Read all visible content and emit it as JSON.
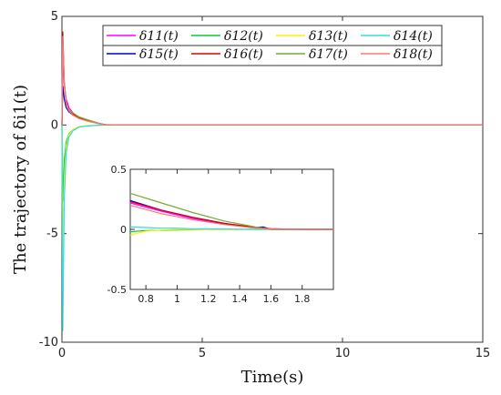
{
  "chart_data": [
    {
      "type": "line",
      "xlabel": "Time(s)",
      "ylabel": "The trajectory of δi1(t)",
      "xlim": [
        0,
        15
      ],
      "ylim": [
        -10,
        5
      ],
      "xticks": [
        0,
        5,
        10,
        15
      ],
      "yticks": [
        -10,
        -5,
        0,
        5
      ],
      "grid": false,
      "legend": {
        "placement": "top-right",
        "columns": 4
      },
      "series": [
        {
          "name": "δ11(t)",
          "color": "#ff00ff",
          "x": [
            0,
            0.03,
            0.08,
            0.15,
            0.25,
            0.4,
            0.6,
            0.9,
            1.3,
            1.6,
            2,
            15
          ],
          "y": [
            0,
            3.0,
            1.8,
            1.2,
            0.8,
            0.55,
            0.35,
            0.2,
            0.07,
            0,
            0,
            0
          ]
        },
        {
          "name": "δ12(t)",
          "color": "#00cc44",
          "x": [
            0,
            0.03,
            0.08,
            0.15,
            0.25,
            0.4,
            0.6,
            0.9,
            1.3,
            1.6,
            2,
            15
          ],
          "y": [
            0,
            -3.5,
            -1.6,
            -0.8,
            -0.4,
            -0.2,
            -0.1,
            -0.04,
            -0.01,
            0,
            0,
            0
          ]
        },
        {
          "name": "δ13(t)",
          "color": "#ffee00",
          "x": [
            0,
            0.03,
            0.08,
            0.15,
            0.25,
            0.4,
            0.6,
            0.9,
            1.3,
            1.6,
            2,
            15
          ],
          "y": [
            0,
            -6.0,
            -2.5,
            -1.0,
            -0.45,
            -0.2,
            -0.08,
            -0.03,
            -0.01,
            0,
            0,
            0
          ]
        },
        {
          "name": "δ14(t)",
          "color": "#33dddd",
          "x": [
            0,
            0.03,
            0.08,
            0.15,
            0.25,
            0.4,
            0.6,
            0.9,
            1.3,
            1.6,
            2,
            15
          ],
          "y": [
            0,
            -9.5,
            -3.5,
            -1.3,
            -0.55,
            -0.25,
            -0.1,
            -0.04,
            -0.01,
            0,
            0,
            0
          ]
        },
        {
          "name": "δ15(t)",
          "color": "#0000cc",
          "x": [
            0,
            0.03,
            0.08,
            0.15,
            0.25,
            0.4,
            0.6,
            0.9,
            1.3,
            1.6,
            2,
            15
          ],
          "y": [
            0,
            1.8,
            1.2,
            0.8,
            0.6,
            0.45,
            0.32,
            0.2,
            0.07,
            0,
            0,
            0
          ]
        },
        {
          "name": "δ16(t)",
          "color": "#dd0000",
          "x": [
            0,
            0.03,
            0.08,
            0.15,
            0.25,
            0.4,
            0.6,
            0.9,
            1.3,
            1.6,
            2,
            15
          ],
          "y": [
            0,
            4.3,
            2.0,
            1.1,
            0.7,
            0.5,
            0.35,
            0.22,
            0.08,
            0,
            0,
            0
          ]
        },
        {
          "name": "δ17(t)",
          "color": "#77aa33",
          "x": [
            0,
            0.03,
            0.08,
            0.15,
            0.25,
            0.4,
            0.6,
            0.9,
            1.3,
            1.5,
            2,
            15
          ],
          "y": [
            0,
            3.8,
            1.9,
            1.0,
            0.7,
            0.55,
            0.38,
            0.25,
            0.09,
            0.02,
            0,
            0
          ]
        },
        {
          "name": "δ18(t)",
          "color": "#ff7777",
          "x": [
            0,
            0.03,
            0.08,
            0.15,
            0.25,
            0.4,
            0.6,
            0.9,
            1.3,
            1.6,
            2,
            15
          ],
          "y": [
            0,
            4.1,
            1.9,
            1.05,
            0.65,
            0.45,
            0.3,
            0.18,
            0.06,
            0,
            0,
            0
          ]
        }
      ]
    },
    {
      "type": "line",
      "inset": true,
      "xlim": [
        0.7,
        2.0
      ],
      "ylim": [
        -0.5,
        0.5
      ],
      "xticks": [
        0.8,
        1,
        1.2,
        1.4,
        1.6,
        1.8
      ],
      "yticks": [
        -0.5,
        0,
        0.5
      ],
      "grid": false,
      "series": [
        {
          "name": "δ11(t)",
          "color": "#ff00ff",
          "x": [
            0.7,
            0.9,
            1.1,
            1.3,
            1.5,
            1.6,
            1.8,
            2.0
          ],
          "y": [
            0.22,
            0.15,
            0.09,
            0.045,
            0.015,
            0.005,
            0,
            0
          ]
        },
        {
          "name": "δ12(t)",
          "color": "#00cc44",
          "x": [
            0.7,
            0.8,
            1.0,
            1.2,
            1.4,
            1.6,
            1.8,
            2.0
          ],
          "y": [
            -0.02,
            -0.01,
            -0.005,
            0,
            0,
            0,
            0,
            0
          ]
        },
        {
          "name": "δ13(t)",
          "color": "#ffee00",
          "x": [
            0.7,
            0.75,
            0.8,
            0.9,
            1.0,
            1.2,
            1.5,
            2.0
          ],
          "y": [
            -0.05,
            -0.03,
            -0.015,
            -0.005,
            0,
            0,
            0,
            0
          ]
        },
        {
          "name": "δ14(t)",
          "color": "#33dddd",
          "x": [
            0.7,
            0.8,
            0.9,
            1.0,
            1.1,
            1.3,
            1.5,
            2.0
          ],
          "y": [
            0.02,
            0.015,
            0.01,
            0.01,
            0.005,
            0.003,
            0,
            0
          ]
        },
        {
          "name": "δ15(t)",
          "color": "#0000cc",
          "x": [
            0.7,
            0.9,
            1.1,
            1.3,
            1.5,
            1.55,
            1.6,
            2.0
          ],
          "y": [
            0.24,
            0.16,
            0.1,
            0.05,
            0.015,
            0.02,
            0,
            0
          ]
        },
        {
          "name": "δ16(t)",
          "color": "#dd0000",
          "x": [
            0.7,
            0.9,
            1.1,
            1.3,
            1.5,
            1.6,
            1.8,
            2.0
          ],
          "y": [
            0.23,
            0.16,
            0.1,
            0.05,
            0.015,
            0.005,
            0,
            0
          ]
        },
        {
          "name": "δ17(t)",
          "color": "#77aa33",
          "x": [
            0.7,
            0.9,
            1.1,
            1.3,
            1.5,
            1.6,
            2.0
          ],
          "y": [
            0.3,
            0.22,
            0.14,
            0.07,
            0.02,
            0,
            0
          ]
        },
        {
          "name": "δ18(t)",
          "color": "#ff7777",
          "x": [
            0.7,
            0.9,
            1.1,
            1.3,
            1.5,
            1.6,
            1.8,
            2.0
          ],
          "y": [
            0.2,
            0.13,
            0.08,
            0.04,
            0.01,
            0.003,
            0,
            0
          ]
        }
      ]
    }
  ]
}
